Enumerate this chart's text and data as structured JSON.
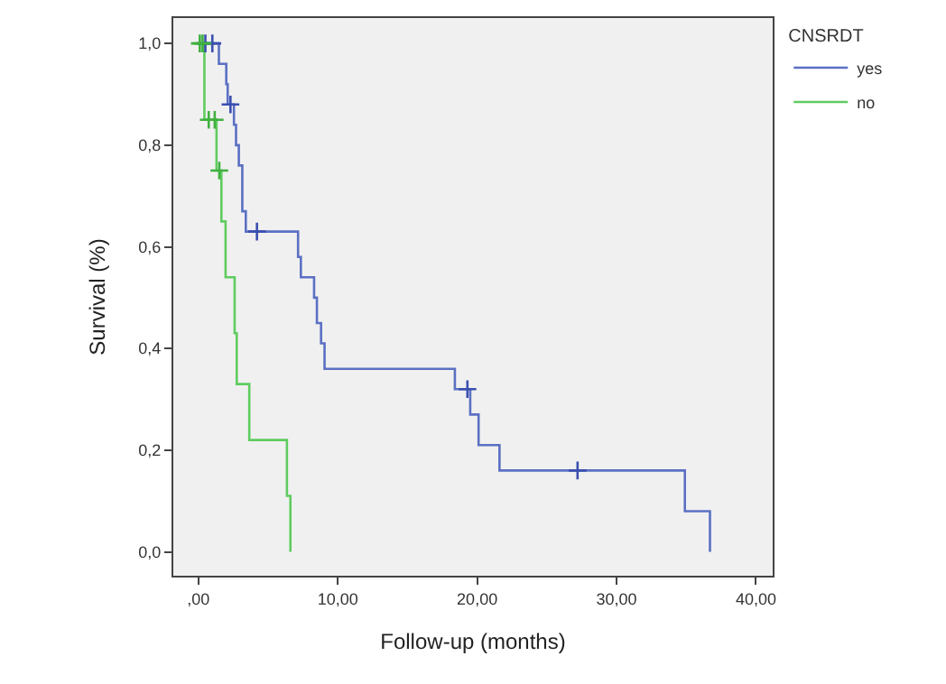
{
  "chart_data": {
    "type": "step",
    "xlabel": "Follow-up (months)",
    "ylabel": "Survival (%)",
    "legend_title": "CNSRDT",
    "xlim": [
      -1.8,
      41.2
    ],
    "ylim": [
      -0.047,
      1.05
    ],
    "xticks": [
      {
        "value": 0,
        "label": ",00"
      },
      {
        "value": 10,
        "label": "10,00"
      },
      {
        "value": 20,
        "label": "20,00"
      },
      {
        "value": 30,
        "label": "30,00"
      },
      {
        "value": 40,
        "label": "40,00"
      }
    ],
    "yticks": [
      {
        "value": 0,
        "label": "0,0"
      },
      {
        "value": 0.2,
        "label": "0,2"
      },
      {
        "value": 0.4,
        "label": "0,4"
      },
      {
        "value": 0.6,
        "label": "0,6"
      },
      {
        "value": 0.8,
        "label": "0,8"
      },
      {
        "value": 1.0,
        "label": "1,0"
      }
    ],
    "grid": false,
    "legend": "top right",
    "series": [
      {
        "name": "yes",
        "color": "#5b70c4",
        "x": [
          0,
          1.47,
          2.0,
          2.1,
          2.55,
          2.7,
          2.9,
          3.15,
          3.4,
          7.15,
          7.35,
          8.3,
          8.5,
          8.8,
          9.05,
          18.4,
          19.5,
          20.1,
          21.6,
          34.9,
          36.7
        ],
        "values": [
          1.0,
          0.96,
          0.92,
          0.88,
          0.84,
          0.8,
          0.76,
          0.67,
          0.63,
          0.58,
          0.54,
          0.5,
          0.45,
          0.41,
          0.36,
          0.32,
          0.27,
          0.21,
          0.16,
          0.08,
          0.0
        ]
      },
      {
        "name": "no",
        "color": "#5fcc5f",
        "x": [
          0,
          0.43,
          1.3,
          1.65,
          1.95,
          2.6,
          2.75,
          3.65,
          6.35,
          6.6
        ],
        "values": [
          1.0,
          0.85,
          0.75,
          0.65,
          0.54,
          0.43,
          0.33,
          0.22,
          0.11,
          0.0
        ]
      },
      {
        "color": "#3a4fb0",
        "type": "scatter",
        "marker": "cross",
        "x": [
          0.5,
          1.0,
          2.3,
          4.2,
          19.3,
          27.2
        ],
        "values": [
          1.0,
          1.0,
          0.88,
          0.63,
          0.32,
          0.16
        ]
      },
      {
        "color": "#3fb03f",
        "type": "scatter",
        "marker": "cross",
        "x": [
          0.1,
          0.3,
          0.74,
          1.17,
          1.5
        ],
        "values": [
          1.0,
          1.0,
          0.85,
          0.85,
          0.75
        ]
      }
    ]
  }
}
